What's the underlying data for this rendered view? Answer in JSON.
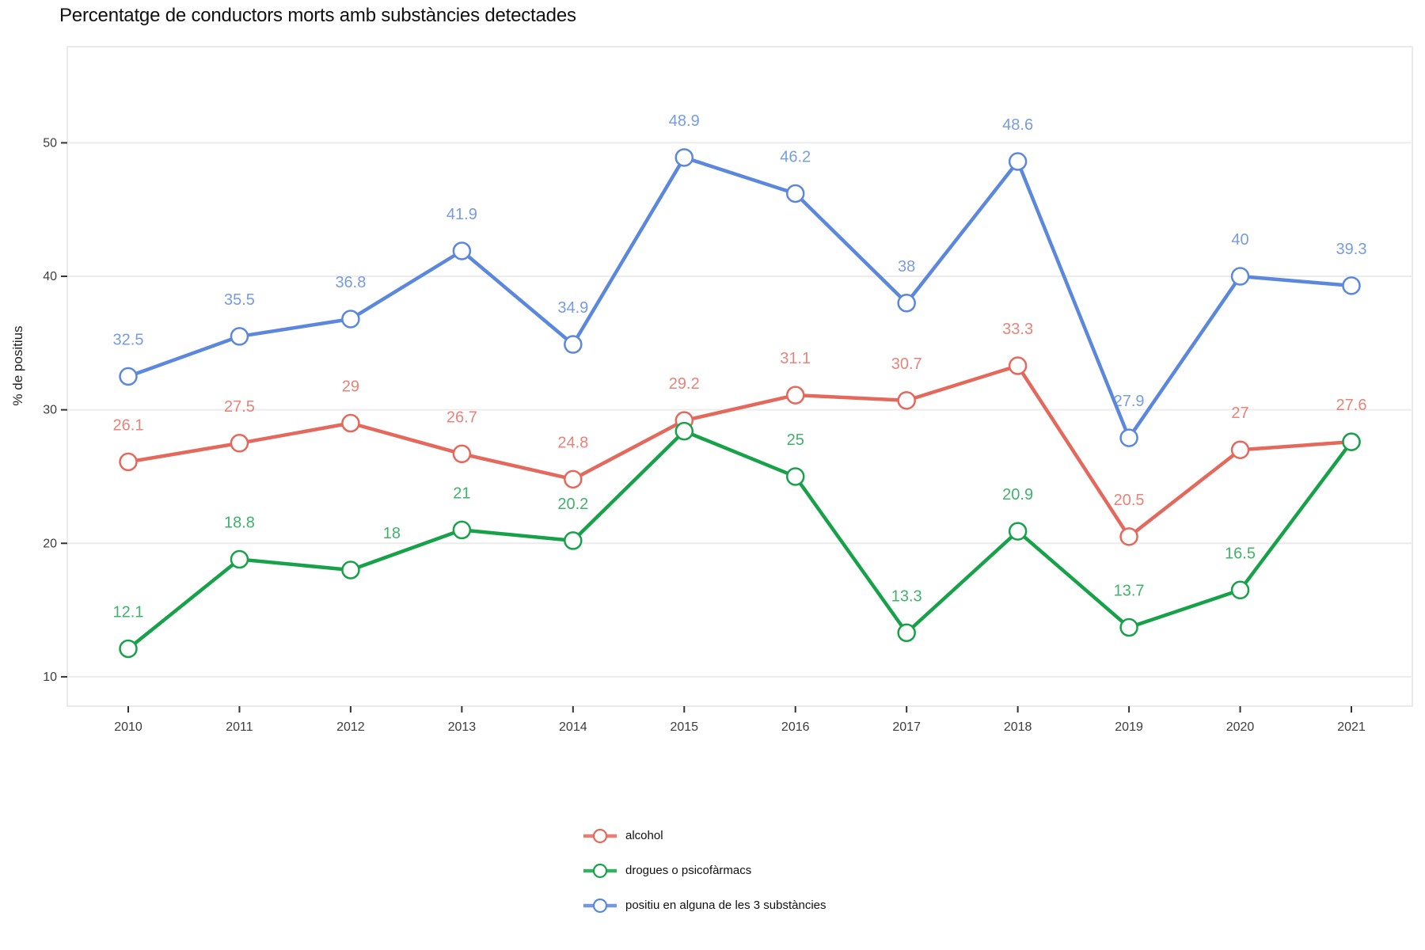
{
  "chart_data": {
    "type": "line",
    "title": "Percentatge de conductors morts amb substàncies detectades",
    "xlabel": "",
    "ylabel": "% de positius",
    "x_tick_labels": [
      "2010",
      "2011",
      "2012",
      "2013",
      "2014",
      "2015",
      "2016",
      "2017",
      "2018",
      "2019",
      "2020",
      "2021"
    ],
    "y_ticks": [
      10,
      20,
      30,
      40,
      50
    ],
    "ylim": [
      7.8,
      57.2
    ],
    "grid": true,
    "legend_position": "bottom",
    "marker_style": "open-circle",
    "series": [
      {
        "name": "alcohol",
        "color": "#E4685C",
        "values": [
          26.1,
          27.5,
          29,
          26.7,
          24.8,
          29.2,
          31.1,
          30.7,
          33.3,
          20.5,
          27,
          27.6
        ],
        "labels": [
          "26.1",
          "27.5",
          "29",
          "26.7",
          "24.8",
          "29.2",
          "31.1",
          "30.7",
          "33.3",
          "20.5",
          "27",
          "27.6"
        ]
      },
      {
        "name": "drogues o psicofàrmacs",
        "color": "#17A24A",
        "values": [
          12.1,
          18.8,
          18,
          21,
          20.2,
          28.4,
          25,
          13.3,
          20.9,
          13.7,
          16.5,
          27.6
        ],
        "labels": [
          "12.1",
          "18.8",
          "18",
          "21",
          "20.2",
          "",
          "25",
          "13.3",
          "20.9",
          "13.7",
          "16.5",
          ""
        ]
      },
      {
        "name": "positiu en alguna de les 3 substàncies",
        "color": "#5B87DC",
        "values": [
          32.5,
          35.5,
          36.8,
          41.9,
          34.9,
          48.9,
          46.2,
          38,
          48.6,
          27.9,
          40,
          39.3
        ],
        "labels": [
          "32.5",
          "35.5",
          "36.8",
          "41.9",
          "34.9",
          "48.9",
          "46.2",
          "38",
          "48.6",
          "27.9",
          "40",
          "39.3"
        ]
      }
    ]
  }
}
